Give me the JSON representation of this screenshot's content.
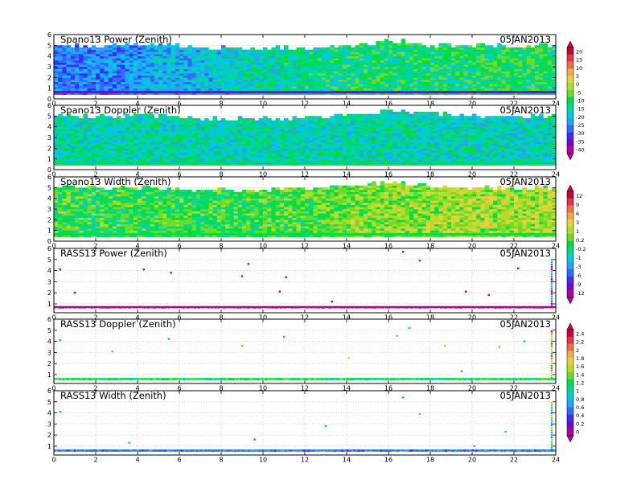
{
  "chart_data": [
    {
      "type": "heatmap",
      "title": "Spano13 Power (Zenith)",
      "date": "05JAN2013",
      "x_ticks": [
        "0",
        "2",
        "4",
        "6",
        "8",
        "10",
        "12",
        "14",
        "16",
        "18",
        "20",
        "22",
        "24"
      ],
      "y_ticks": [
        "0",
        "1",
        "2",
        "3",
        "4",
        "5",
        "6"
      ],
      "xlim": [
        0,
        24
      ],
      "ylim": [
        0,
        6
      ],
      "grid": true,
      "colorbar": "A",
      "value_range": [
        -40,
        20
      ],
      "profile": [
        {
          "x": 0,
          "top": 5.0,
          "base": 0.5,
          "mean": -25
        },
        {
          "x": 2,
          "top": 5.0,
          "base": 0.5,
          "mean": -25
        },
        {
          "x": 4,
          "top": 5.0,
          "base": 0.5,
          "mean": -22
        },
        {
          "x": 6,
          "top": 5.0,
          "base": 0.5,
          "mean": -20
        },
        {
          "x": 8,
          "top": 4.8,
          "base": 0.5,
          "mean": -18
        },
        {
          "x": 10,
          "top": 4.8,
          "base": 0.5,
          "mean": -15
        },
        {
          "x": 12,
          "top": 4.8,
          "base": 0.5,
          "mean": -14
        },
        {
          "x": 14,
          "top": 4.8,
          "base": 0.5,
          "mean": -12
        },
        {
          "x": 16,
          "top": 5.5,
          "base": 0.5,
          "mean": -12
        },
        {
          "x": 18,
          "top": 5.0,
          "base": 0.5,
          "mean": -12
        },
        {
          "x": 20,
          "top": 5.0,
          "base": 0.5,
          "mean": -12
        },
        {
          "x": 22,
          "top": 5.0,
          "base": 0.5,
          "mean": -11
        },
        {
          "x": 24,
          "top": 5.0,
          "base": 0.5,
          "mean": -11
        }
      ]
    },
    {
      "type": "heatmap",
      "title": "Spano13 Doppler (Zenith)",
      "date": "05JAN2013",
      "x_ticks": [
        "0",
        "2",
        "4",
        "6",
        "8",
        "10",
        "12",
        "14",
        "16",
        "18",
        "20",
        "22",
        "24"
      ],
      "y_ticks": [
        "0",
        "1",
        "2",
        "3",
        "4",
        "5",
        "6"
      ],
      "xlim": [
        0,
        24
      ],
      "ylim": [
        0,
        6
      ],
      "grid": true,
      "colorbar": "A",
      "value_range": [
        -40,
        20
      ],
      "profile": [
        {
          "x": 0,
          "top": 5.0,
          "base": 0.5,
          "mean": -15
        },
        {
          "x": 4,
          "top": 5.0,
          "base": 0.5,
          "mean": -15
        },
        {
          "x": 8,
          "top": 4.8,
          "base": 0.5,
          "mean": -15
        },
        {
          "x": 12,
          "top": 4.8,
          "base": 0.5,
          "mean": -15
        },
        {
          "x": 16,
          "top": 5.5,
          "base": 0.5,
          "mean": -15
        },
        {
          "x": 20,
          "top": 5.0,
          "base": 0.5,
          "mean": -16
        },
        {
          "x": 24,
          "top": 5.0,
          "base": 0.5,
          "mean": -16
        }
      ]
    },
    {
      "type": "heatmap",
      "title": "Spano13 Width (Zenith)",
      "date": "05JAN2013",
      "x_ticks": [
        "0",
        "2",
        "4",
        "6",
        "8",
        "10",
        "12",
        "14",
        "16",
        "18",
        "20",
        "22",
        "24"
      ],
      "y_ticks": [
        "0",
        "1",
        "2",
        "3",
        "4",
        "5",
        "6"
      ],
      "xlim": [
        0,
        24
      ],
      "ylim": [
        0,
        6
      ],
      "grid": true,
      "colorbar": "B",
      "value_range": [
        -12,
        12
      ],
      "profile": [
        {
          "x": 0,
          "top": 5.0,
          "base": 0.5,
          "mean": 0.2
        },
        {
          "x": 4,
          "top": 5.0,
          "base": 0.5,
          "mean": 0.2
        },
        {
          "x": 8,
          "top": 4.8,
          "base": 0.5,
          "mean": 0.5
        },
        {
          "x": 12,
          "top": 4.8,
          "base": 0.5,
          "mean": 1
        },
        {
          "x": 16,
          "top": 5.5,
          "base": 0.5,
          "mean": 2
        },
        {
          "x": 20,
          "top": 5.0,
          "base": 0.5,
          "mean": 3
        },
        {
          "x": 24,
          "top": 5.0,
          "base": 0.5,
          "mean": 3
        }
      ]
    },
    {
      "type": "scatter",
      "title": "RASS13 Power (Zenith)",
      "date": "05JAN2013",
      "x_ticks": [
        "0",
        "2",
        "4",
        "6",
        "8",
        "10",
        "12",
        "14",
        "16",
        "18",
        "20",
        "22",
        "24"
      ],
      "y_ticks": [
        "1",
        "2",
        "3",
        "4",
        "5",
        "6"
      ],
      "xlim": [
        0,
        24
      ],
      "ylim": [
        0.2,
        6
      ],
      "grid": true,
      "colorbar": "B",
      "band": {
        "y": [
          0.6,
          0.8
        ],
        "value": -12
      },
      "points": [
        {
          "x": 0.3,
          "y": 4.1,
          "v": -12
        },
        {
          "x": 1.0,
          "y": 2.0,
          "v": -12
        },
        {
          "x": 4.3,
          "y": 4.1,
          "v": -12
        },
        {
          "x": 5.6,
          "y": 3.8,
          "v": -12
        },
        {
          "x": 9.3,
          "y": 4.6,
          "v": -12
        },
        {
          "x": 9.0,
          "y": 3.5,
          "v": -12
        },
        {
          "x": 10.8,
          "y": 2.1,
          "v": -12
        },
        {
          "x": 11.1,
          "y": 3.4,
          "v": -12
        },
        {
          "x": 13.3,
          "y": 1.2,
          "v": -12
        },
        {
          "x": 16.7,
          "y": 5.7,
          "v": -12
        },
        {
          "x": 17.5,
          "y": 4.9,
          "v": -12
        },
        {
          "x": 19.7,
          "y": 2.1,
          "v": -12
        },
        {
          "x": 20.8,
          "y": 1.8,
          "v": -12
        },
        {
          "x": 22.2,
          "y": 4.2,
          "v": -12
        },
        {
          "x": 23.8,
          "y": 3.0,
          "v": 1
        }
      ]
    },
    {
      "type": "scatter",
      "title": "RASS13 Doppler (Zenith)",
      "date": "05JAN2013",
      "x_ticks": [
        "0",
        "2",
        "4",
        "6",
        "8",
        "10",
        "12",
        "14",
        "16",
        "18",
        "20",
        "22",
        "24"
      ],
      "y_ticks": [
        "1",
        "2",
        "3",
        "4",
        "5",
        "6"
      ],
      "xlim": [
        0,
        24
      ],
      "ylim": [
        0.2,
        6
      ],
      "grid": true,
      "colorbar": "C",
      "band": {
        "y": [
          0.5,
          0.7
        ],
        "value": 1.2
      },
      "points": [
        {
          "x": 0.3,
          "y": 4.1,
          "v": 1.2
        },
        {
          "x": 2.8,
          "y": 3.1,
          "v": 1.4
        },
        {
          "x": 5.5,
          "y": 4.2,
          "v": 1.2
        },
        {
          "x": 9.0,
          "y": 3.6,
          "v": 1.4
        },
        {
          "x": 11.0,
          "y": 4.4,
          "v": 1.2
        },
        {
          "x": 14.1,
          "y": 2.5,
          "v": 1.6
        },
        {
          "x": 16.4,
          "y": 4.5,
          "v": 1.4
        },
        {
          "x": 17.0,
          "y": 5.2,
          "v": 1.2
        },
        {
          "x": 18.7,
          "y": 3.6,
          "v": 1.8
        },
        {
          "x": 19.5,
          "y": 1.3,
          "v": 1.2
        },
        {
          "x": 21.3,
          "y": 3.5,
          "v": 1.4
        },
        {
          "x": 22.5,
          "y": 4.0,
          "v": 1.2
        },
        {
          "x": 23.8,
          "y": 4.9,
          "v": 2.2
        }
      ]
    },
    {
      "type": "scatter",
      "title": "RASS13 Width (Zenith)",
      "date": "05JAN2013",
      "x_ticks": [
        "0",
        "2",
        "4",
        "6",
        "8",
        "10",
        "12",
        "14",
        "16",
        "18",
        "20",
        "22",
        "24"
      ],
      "y_ticks": [
        "1",
        "2",
        "3",
        "4",
        "5",
        "6"
      ],
      "xlim": [
        0,
        24
      ],
      "ylim": [
        0.2,
        6
      ],
      "grid": true,
      "colorbar": "C",
      "band": {
        "y": [
          0.5,
          0.7
        ],
        "value": 0.6
      },
      "points": [
        {
          "x": 0.3,
          "y": 4.1,
          "v": 1.2
        },
        {
          "x": 3.6,
          "y": 1.3,
          "v": 1.2
        },
        {
          "x": 9.6,
          "y": 1.6,
          "v": 0.6
        },
        {
          "x": 13.0,
          "y": 2.8,
          "v": 1.0
        },
        {
          "x": 16.7,
          "y": 5.4,
          "v": 1.2
        },
        {
          "x": 17.5,
          "y": 3.9,
          "v": 1.4
        },
        {
          "x": 20.1,
          "y": 1.0,
          "v": 1.2
        },
        {
          "x": 21.6,
          "y": 2.3,
          "v": 0.8
        },
        {
          "x": 23.8,
          "y": 4.9,
          "v": 1.8
        }
      ]
    }
  ],
  "colorbars": {
    "A": {
      "labels": [
        "20",
        "15",
        "10",
        "5",
        "0",
        "-5",
        "-10",
        "-15",
        "-20",
        "-25",
        "-30",
        "-35",
        "-40"
      ],
      "values": [
        20,
        15,
        10,
        5,
        0,
        -5,
        -10,
        -15,
        -20,
        -25,
        -30,
        -35,
        -40
      ]
    },
    "B": {
      "labels": [
        "12",
        "9",
        "6",
        "3",
        "1",
        "0.2",
        "-0.2",
        "-1",
        "-3",
        "-6",
        "-9",
        "-12"
      ],
      "values": [
        12,
        9,
        6,
        3,
        1,
        0.2,
        -0.2,
        -1,
        -3,
        -6,
        -9,
        -12
      ]
    },
    "C": {
      "labels": [
        "2.4",
        "2.2",
        "2",
        "1.8",
        "1.6",
        "1.4",
        "1.2",
        "1",
        "0.8",
        "0.6",
        "0.4",
        "0.2",
        "0"
      ],
      "values": [
        2.4,
        2.2,
        2,
        1.8,
        1.6,
        1.4,
        1.2,
        1,
        0.8,
        0.6,
        0.4,
        0.2,
        0
      ]
    }
  },
  "palette": [
    "#b40096",
    "#7a00d6",
    "#3b2cff",
    "#2f6bff",
    "#23a3ff",
    "#00c8e0",
    "#00d69a",
    "#00dc46",
    "#6ddc24",
    "#b4dc28",
    "#e6d23c",
    "#f0aa46",
    "#eb6e46",
    "#e6324b",
    "#c8003c"
  ]
}
